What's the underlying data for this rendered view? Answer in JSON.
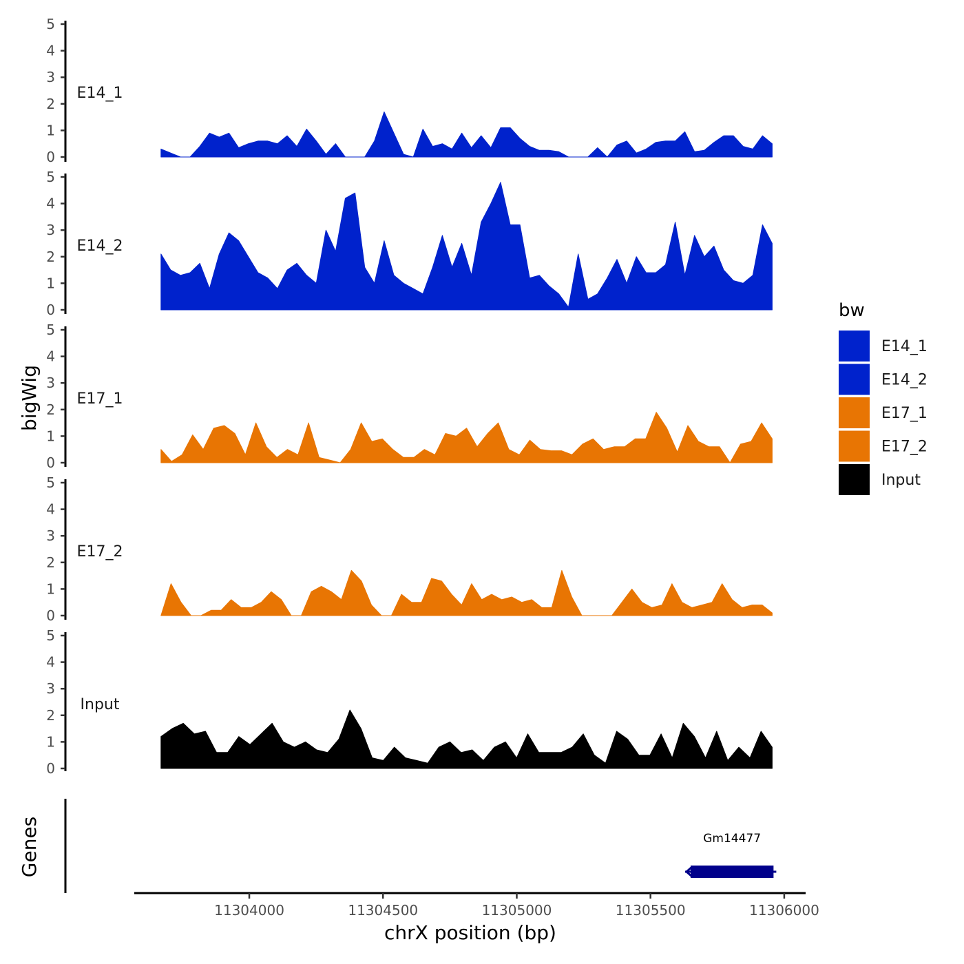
{
  "chart_data": {
    "type": "area",
    "ylabel": "bigWig",
    "xlabel": "chrX position (bp)",
    "xlim": [
      11303570,
      11306080
    ],
    "ylim": [
      0,
      5
    ],
    "yticks": [
      "0",
      "1",
      "2",
      "3",
      "4",
      "5"
    ],
    "xticks": [
      {
        "value": 11304000,
        "label": "11304000"
      },
      {
        "value": 11304500,
        "label": "11304500"
      },
      {
        "value": 11305000,
        "label": "11305000"
      },
      {
        "value": 11305500,
        "label": "11305500"
      },
      {
        "value": 11306000,
        "label": "11306000"
      }
    ],
    "data_range": [
      11303670,
      11305955
    ],
    "legend": {
      "title": "bw",
      "entries": [
        {
          "label": "E14_1",
          "color": "#0022CC"
        },
        {
          "label": "E14_2",
          "color": "#0022CC"
        },
        {
          "label": "E17_1",
          "color": "#E87503"
        },
        {
          "label": "E17_2",
          "color": "#E87503"
        },
        {
          "label": "Input",
          "color": "#000000"
        }
      ]
    },
    "series": [
      {
        "name": "E14_1",
        "label": "E14_1",
        "color": "#0022CC",
        "values": [
          0.3,
          0.15,
          0,
          0,
          0.4,
          0.9,
          0.75,
          0.9,
          0.35,
          0.5,
          0.6,
          0.6,
          0.5,
          0.8,
          0.4,
          1.05,
          0.6,
          0.1,
          0.5,
          0,
          0,
          0,
          0.6,
          1.7,
          0.9,
          0.1,
          0,
          1.05,
          0.4,
          0.5,
          0.3,
          0.9,
          0.35,
          0.8,
          0.35,
          1.1,
          1.1,
          0.7,
          0.4,
          0.25,
          0.25,
          0.2,
          0,
          0,
          0,
          0.35,
          0,
          0.45,
          0.6,
          0.15,
          0.3,
          0.55,
          0.6,
          0.6,
          0.95,
          0.2,
          0.25,
          0.55,
          0.8,
          0.8,
          0.4,
          0.3,
          0.8,
          0.5
        ]
      },
      {
        "name": "E14_2",
        "label": "E14_2",
        "color": "#0022CC",
        "values": [
          2.1,
          1.5,
          1.3,
          1.4,
          1.75,
          0.8,
          2.1,
          2.9,
          2.6,
          2.0,
          1.4,
          1.2,
          0.8,
          1.5,
          1.75,
          1.3,
          1.0,
          3.0,
          2.2,
          4.2,
          4.4,
          1.6,
          1.0,
          2.6,
          1.3,
          1.0,
          0.8,
          0.6,
          1.6,
          2.8,
          1.6,
          2.5,
          1.3,
          3.3,
          4.0,
          4.8,
          3.2,
          3.2,
          1.2,
          1.3,
          0.9,
          0.6,
          0.1,
          2.1,
          0.4,
          0.6,
          1.2,
          1.9,
          1.0,
          2.0,
          1.4,
          1.4,
          1.7,
          3.3,
          1.3,
          2.8,
          2.0,
          2.4,
          1.5,
          1.1,
          1.0,
          1.3,
          3.2,
          2.5
        ]
      },
      {
        "name": "E17_1",
        "label": "E17_1",
        "color": "#E87503",
        "values": [
          0.5,
          0.05,
          0.3,
          1.05,
          0.5,
          1.3,
          1.4,
          1.1,
          0.3,
          1.5,
          0.6,
          0.2,
          0.5,
          0.3,
          1.5,
          0.2,
          0.1,
          0,
          0.5,
          1.5,
          0.8,
          0.9,
          0.5,
          0.2,
          0.2,
          0.5,
          0.3,
          1.1,
          1.0,
          1.3,
          0.6,
          1.1,
          1.5,
          0.5,
          0.3,
          0.85,
          0.5,
          0.45,
          0.45,
          0.3,
          0.7,
          0.9,
          0.5,
          0.6,
          0.6,
          0.9,
          0.9,
          1.9,
          1.3,
          0.4,
          1.4,
          0.8,
          0.6,
          0.6,
          0,
          0.7,
          0.8,
          1.5,
          0.9
        ]
      },
      {
        "name": "E17_2",
        "label": "E17_2",
        "color": "#E87503",
        "values": [
          0,
          1.2,
          0.5,
          0,
          0,
          0.2,
          0.2,
          0.6,
          0.3,
          0.3,
          0.5,
          0.9,
          0.6,
          0,
          0,
          0.9,
          1.1,
          0.9,
          0.6,
          1.7,
          1.3,
          0.4,
          0,
          0,
          0.8,
          0.5,
          0.5,
          1.4,
          1.3,
          0.8,
          0.4,
          1.2,
          0.6,
          0.8,
          0.6,
          0.7,
          0.5,
          0.6,
          0.3,
          0.3,
          1.7,
          0.7,
          0,
          0,
          0,
          0,
          0.5,
          1.0,
          0.5,
          0.3,
          0.4,
          1.2,
          0.5,
          0.3,
          0.4,
          0.5,
          1.2,
          0.6,
          0.3,
          0.4,
          0.4,
          0.1
        ]
      },
      {
        "name": "Input",
        "label": "Input",
        "color": "#000000",
        "values": [
          1.2,
          1.5,
          1.7,
          1.3,
          1.4,
          0.6,
          0.6,
          1.2,
          0.9,
          1.3,
          1.7,
          1.0,
          0.8,
          1.0,
          0.7,
          0.6,
          1.1,
          2.2,
          1.5,
          0.4,
          0.3,
          0.8,
          0.4,
          0.3,
          0.2,
          0.8,
          1.0,
          0.6,
          0.7,
          0.3,
          0.8,
          1.0,
          0.4,
          1.3,
          0.6,
          0.6,
          0.6,
          0.8,
          1.3,
          0.5,
          0.2,
          1.4,
          1.1,
          0.5,
          0.5,
          1.3,
          0.4,
          1.7,
          1.2,
          0.4,
          1.4,
          0.3,
          0.8,
          0.4,
          1.4,
          0.8
        ]
      }
    ],
    "genes_track": {
      "label": "Genes",
      "genes": [
        {
          "name": "Gm14477",
          "start": 11305650,
          "end": 11305960,
          "strand": "-",
          "color": "#00008B"
        }
      ]
    }
  }
}
